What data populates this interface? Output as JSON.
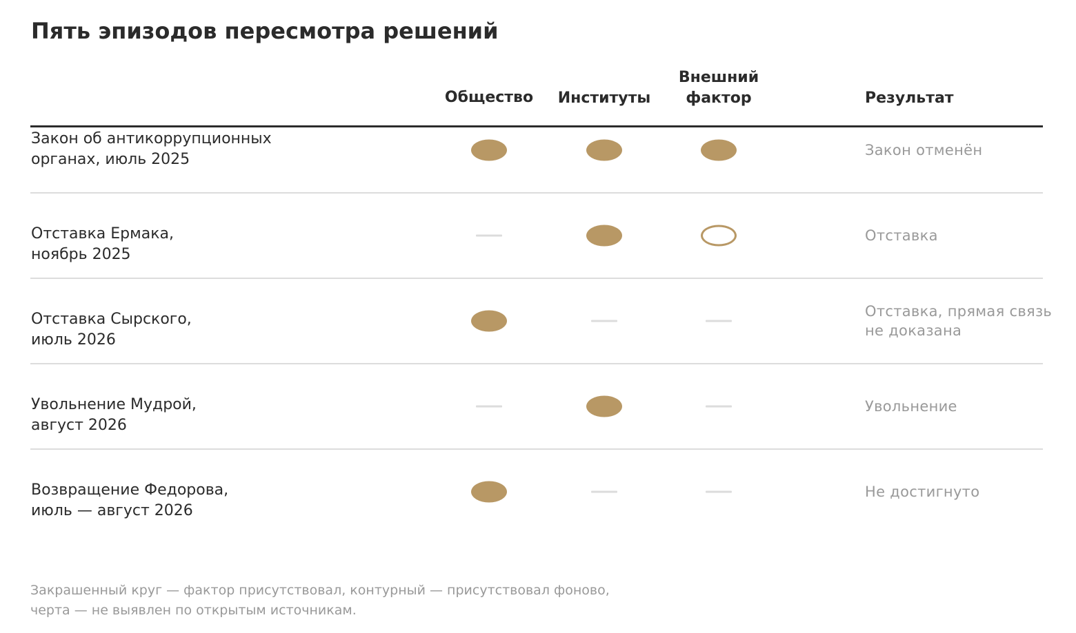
{
  "title": "Пять эпизодов пересмотра решений",
  "colors": {
    "present": "#b89865",
    "absent": "#dcdcdc",
    "text": "#2b2b2b",
    "muted": "#999999"
  },
  "columns": {
    "society": "Общество",
    "institutions": "Институты",
    "external": "Внешний\nфактор",
    "result": "Результат"
  },
  "footnote": "Закрашенный круг — фактор присутствовал, контурный — присутствовал фоново,\nчерта — не выявлен по открытым источникам.",
  "chart_data": {
    "type": "table",
    "title": "Пять эпизодов пересмотра решений",
    "factor_columns": [
      "Общество",
      "Институты",
      "Внешний фактор"
    ],
    "legend": {
      "filled": "фактор присутствовал",
      "outline": "присутствовал фоново",
      "dash": "не выявлен по открытым источникам"
    },
    "rows": [
      {
        "episode": "Закон об антикоррупционных\nорганах, июль 2025",
        "factors": [
          "filled",
          "filled",
          "filled"
        ],
        "result": "Закон отменён"
      },
      {
        "episode": "Отставка Ермака,\nноябрь 2025",
        "factors": [
          "dash",
          "filled",
          "outline"
        ],
        "result": "Отставка"
      },
      {
        "episode": "Отставка Сырского,\nиюль 2026",
        "factors": [
          "filled",
          "dash",
          "dash"
        ],
        "result": "Отставка, прямая связь\nне доказана"
      },
      {
        "episode": "Увольнение Мудрой,\nавгуст 2026",
        "factors": [
          "dash",
          "filled",
          "dash"
        ],
        "result": "Увольнение"
      },
      {
        "episode": "Возвращение Федорова,\nиюль — август 2026",
        "factors": [
          "filled",
          "dash",
          "dash"
        ],
        "result": "Не достигнуто"
      }
    ]
  }
}
